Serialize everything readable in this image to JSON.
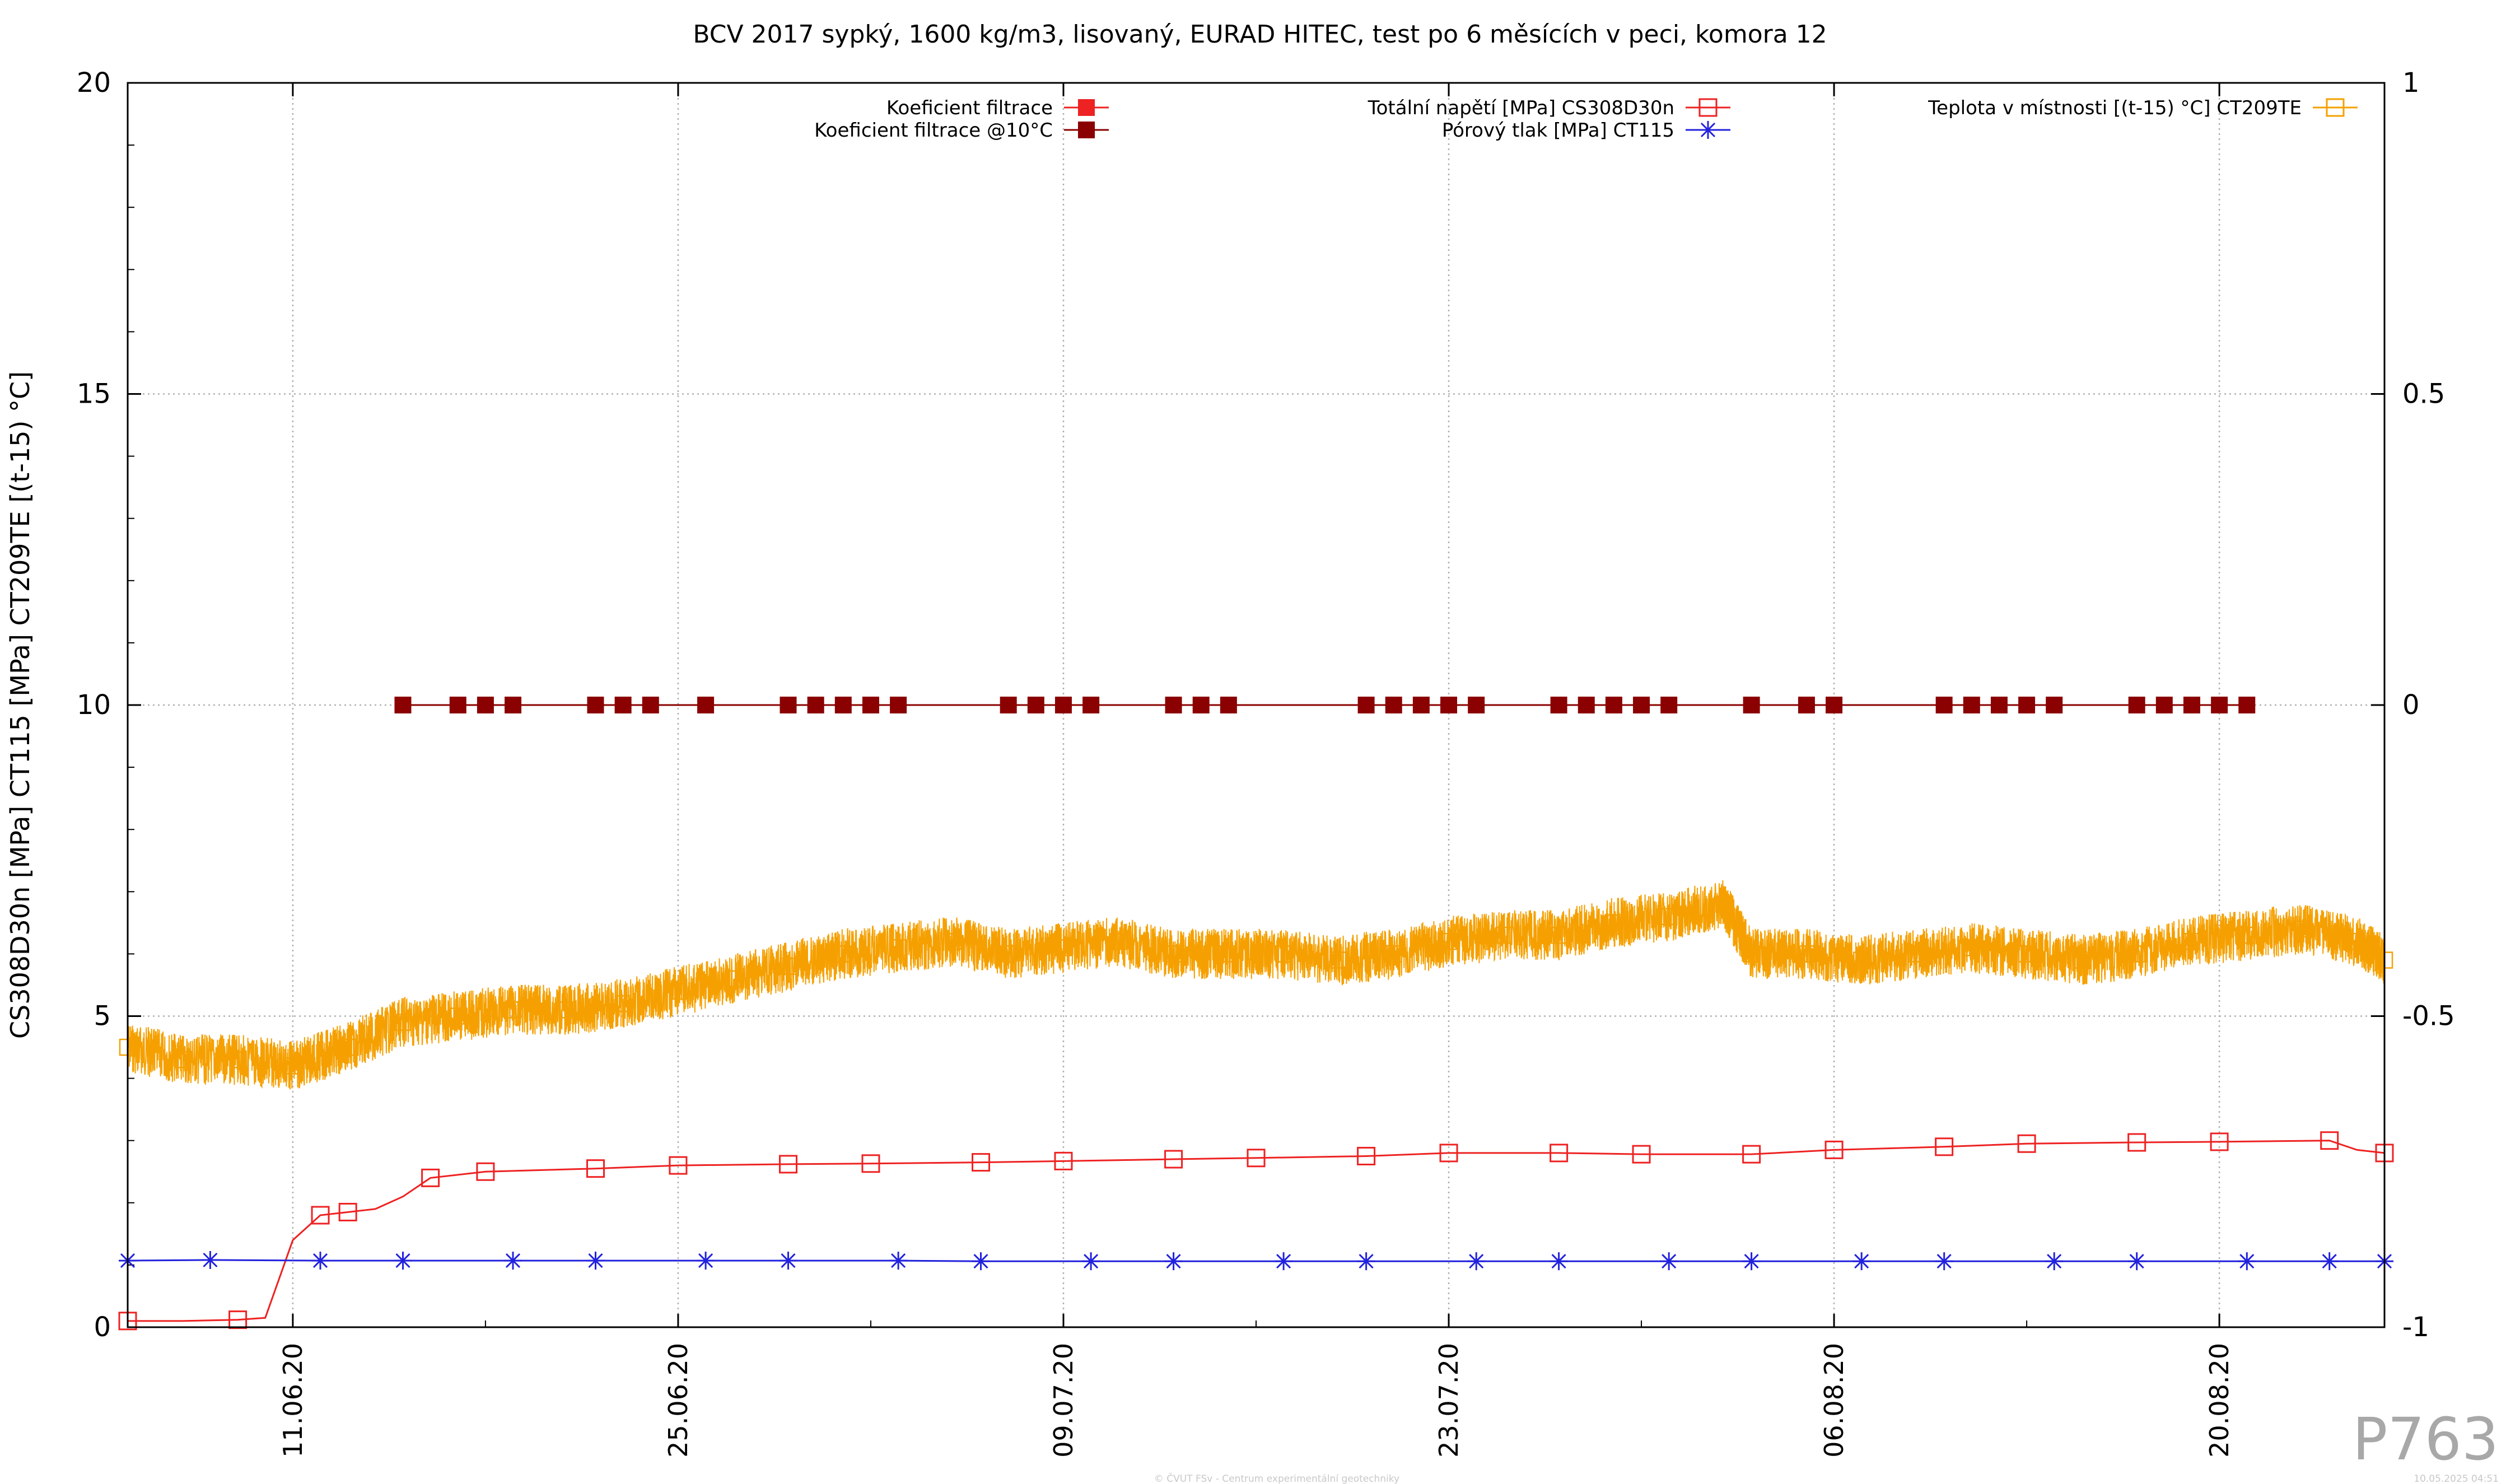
{
  "chart_data": {
    "type": "line",
    "title": "BCV 2017 sypký, 1600 kg/m3, lisovaný, EURAD HITEC, test po 6 měsících v peci, komora 12",
    "ylabel": "CS308D30n [MPa] CT115 [MPa] CT209TE [(t-15) °C]",
    "ylim": [
      0,
      20
    ],
    "y2lim": [
      -1,
      1
    ],
    "yticks": [
      "0",
      "5",
      "10",
      "15",
      "20"
    ],
    "y2ticks": [
      "-1",
      "-0.5",
      "0",
      "0.5",
      "1"
    ],
    "grid": true,
    "x_start": "2020-06-05",
    "x_end": "2020-08-26",
    "xticks": [
      "11.06.20",
      "25.06.20",
      "09.07.20",
      "23.07.20",
      "06.08.20",
      "20.08.20"
    ],
    "legend": {
      "placement": "top",
      "entries": [
        {
          "label": "Koeficient filtrace",
          "color": "#ee2222",
          "marker": "filled-square"
        },
        {
          "label": "Koeficient filtrace @10°C",
          "color": "#8b0000",
          "marker": "filled-square"
        },
        {
          "label": "Totální napětí [MPa] CS308D30n",
          "color": "#ee2222",
          "marker": "open-square"
        },
        {
          "label": "Pórový tlak [MPa] CT115",
          "color": "#2222dd",
          "marker": "asterisk"
        },
        {
          "label": "Teplota v místnosti [(t-15) °C] CT209TE",
          "color": "#f5a000",
          "marker": "open-square"
        }
      ]
    },
    "series": [
      {
        "name": "Koeficient filtrace @10°C",
        "axis": "y2",
        "color": "#8b0000",
        "x": [
          "2020-06-15",
          "2020-06-17",
          "2020-06-18",
          "2020-06-19",
          "2020-06-22",
          "2020-06-23",
          "2020-06-24",
          "2020-06-26",
          "2020-06-29",
          "2020-06-30",
          "2020-07-01",
          "2020-07-02",
          "2020-07-03",
          "2020-07-07",
          "2020-07-08",
          "2020-07-09",
          "2020-07-10",
          "2020-07-13",
          "2020-07-14",
          "2020-07-15",
          "2020-07-20",
          "2020-07-21",
          "2020-07-22",
          "2020-07-23",
          "2020-07-24",
          "2020-07-27",
          "2020-07-28",
          "2020-07-29",
          "2020-07-30",
          "2020-07-31",
          "2020-08-03",
          "2020-08-05",
          "2020-08-06",
          "2020-08-10",
          "2020-08-11",
          "2020-08-12",
          "2020-08-13",
          "2020-08-14",
          "2020-08-17",
          "2020-08-18",
          "2020-08-19",
          "2020-08-20",
          "2020-08-21"
        ],
        "values": [
          0,
          0,
          0,
          0,
          0,
          0,
          0,
          0,
          0,
          0,
          0,
          0,
          0,
          0,
          0,
          0,
          0,
          0,
          0,
          0,
          0,
          0,
          0,
          0,
          0,
          0,
          0,
          0,
          0,
          0,
          0,
          0,
          0,
          0,
          0,
          0,
          0,
          0,
          0,
          0,
          0,
          0,
          0
        ]
      },
      {
        "name": "Totální napětí [MPa] CS308D30n",
        "axis": "y",
        "color": "#ee2222",
        "x": [
          "2020-06-05",
          "2020-06-07",
          "2020-06-09",
          "2020-06-10",
          "2020-06-11",
          "2020-06-12",
          "2020-06-13",
          "2020-06-14",
          "2020-06-15",
          "2020-06-16",
          "2020-06-18",
          "2020-06-22",
          "2020-06-25",
          "2020-06-29",
          "2020-07-02",
          "2020-07-06",
          "2020-07-09",
          "2020-07-13",
          "2020-07-16",
          "2020-07-20",
          "2020-07-23",
          "2020-07-27",
          "2020-07-30",
          "2020-08-03",
          "2020-08-06",
          "2020-08-10",
          "2020-08-13",
          "2020-08-17",
          "2020-08-20",
          "2020-08-24",
          "2020-08-25",
          "2020-08-26"
        ],
        "values": [
          0.1,
          0.1,
          0.12,
          0.15,
          1.4,
          1.8,
          1.85,
          1.9,
          2.1,
          2.4,
          2.5,
          2.55,
          2.6,
          2.62,
          2.63,
          2.65,
          2.67,
          2.7,
          2.72,
          2.75,
          2.8,
          2.8,
          2.78,
          2.78,
          2.85,
          2.9,
          2.95,
          2.97,
          2.98,
          3.0,
          2.85,
          2.8
        ]
      },
      {
        "name": "Pórový tlak [MPa] CT115",
        "axis": "y",
        "color": "#2222dd",
        "x": [
          "2020-06-05",
          "2020-06-08",
          "2020-06-12",
          "2020-06-15",
          "2020-06-19",
          "2020-06-22",
          "2020-06-26",
          "2020-06-29",
          "2020-07-03",
          "2020-07-06",
          "2020-07-10",
          "2020-07-13",
          "2020-07-17",
          "2020-07-20",
          "2020-07-24",
          "2020-07-27",
          "2020-07-31",
          "2020-08-03",
          "2020-08-07",
          "2020-08-10",
          "2020-08-14",
          "2020-08-17",
          "2020-08-21",
          "2020-08-24",
          "2020-08-26"
        ],
        "values": [
          1.07,
          1.08,
          1.07,
          1.07,
          1.07,
          1.07,
          1.07,
          1.07,
          1.07,
          1.06,
          1.06,
          1.06,
          1.06,
          1.06,
          1.06,
          1.06,
          1.06,
          1.06,
          1.06,
          1.06,
          1.06,
          1.06,
          1.06,
          1.06,
          1.06
        ]
      },
      {
        "name": "Teplota v místnosti [(t-15) °C] CT209TE",
        "axis": "y",
        "color": "#f5a000",
        "x": [
          "2020-06-05",
          "2020-06-07",
          "2020-06-09",
          "2020-06-11",
          "2020-06-13",
          "2020-06-15",
          "2020-06-17",
          "2020-06-19",
          "2020-06-21",
          "2020-06-23",
          "2020-06-25",
          "2020-06-27",
          "2020-06-29",
          "2020-07-01",
          "2020-07-03",
          "2020-07-05",
          "2020-07-07",
          "2020-07-09",
          "2020-07-11",
          "2020-07-13",
          "2020-07-15",
          "2020-07-17",
          "2020-07-19",
          "2020-07-21",
          "2020-07-23",
          "2020-07-25",
          "2020-07-27",
          "2020-07-29",
          "2020-07-31",
          "2020-08-02",
          "2020-08-03",
          "2020-08-05",
          "2020-08-07",
          "2020-08-09",
          "2020-08-11",
          "2020-08-13",
          "2020-08-15",
          "2020-08-17",
          "2020-08-19",
          "2020-08-21",
          "2020-08-23",
          "2020-08-25",
          "2020-08-26"
        ],
        "values": [
          4.5,
          4.3,
          4.3,
          4.2,
          4.5,
          4.9,
          5.0,
          5.1,
          5.1,
          5.2,
          5.4,
          5.6,
          5.8,
          6.0,
          6.1,
          6.2,
          6.0,
          6.1,
          6.2,
          6.0,
          6.0,
          6.0,
          5.9,
          6.0,
          6.2,
          6.3,
          6.3,
          6.5,
          6.6,
          6.8,
          6.0,
          6.0,
          5.9,
          6.0,
          6.1,
          6.0,
          5.9,
          6.0,
          6.2,
          6.3,
          6.4,
          6.2,
          5.9
        ]
      }
    ]
  },
  "watermark": "P763",
  "footer_center": "© ČVUT FSv - Centrum experimentální geotechniky",
  "footer_right": "10.05.2025 04:51"
}
